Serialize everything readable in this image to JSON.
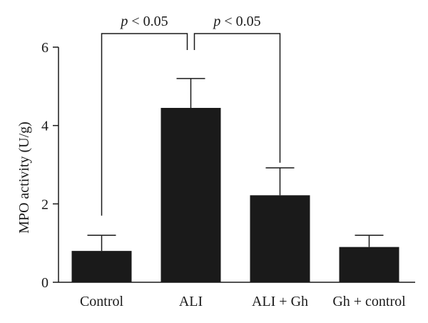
{
  "chart_data": {
    "type": "bar",
    "title": "",
    "xlabel": "",
    "ylabel": "MPO activity (U/g)",
    "ylim": [
      0,
      6
    ],
    "yticks": [
      0,
      2,
      4,
      6
    ],
    "categories": [
      "Control",
      "ALI",
      "ALI + Gh",
      "Gh + control"
    ],
    "values": [
      0.8,
      4.45,
      2.22,
      0.9
    ],
    "error_upper": [
      1.2,
      5.2,
      2.92,
      1.2
    ],
    "bar_color": "#1a1a1a",
    "grid": false,
    "legend": "none",
    "annotations": [
      {
        "text_prefix": "p",
        "text": " < 0.05",
        "from_category": "Control",
        "to_category": "ALI"
      },
      {
        "text_prefix": "p",
        "text": " < 0.05",
        "from_category": "ALI",
        "to_category": "ALI + Gh"
      }
    ]
  }
}
